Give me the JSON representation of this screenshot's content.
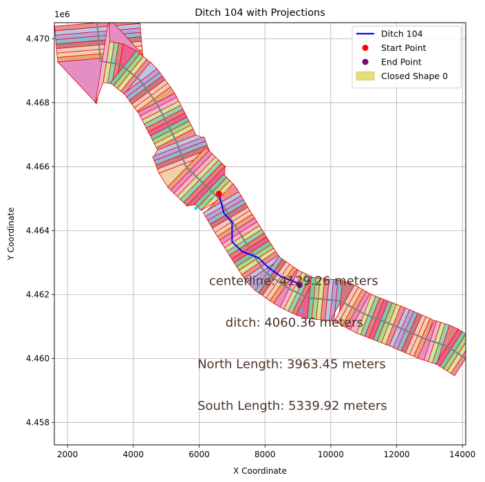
{
  "chart_data": {
    "type": "line",
    "title": "Ditch 104 with Projections",
    "xlabel": "X Coordinate",
    "ylabel": "Y Coordinate",
    "y_offset_label": "1e6",
    "xlim": [
      1600,
      14100
    ],
    "ylim": [
      4.4573,
      4.4705
    ],
    "xticks": [
      2000,
      4000,
      6000,
      8000,
      10000,
      12000,
      14000
    ],
    "xtick_labels": [
      "2000",
      "4000",
      "6000",
      "8000",
      "10000",
      "12000",
      "14000"
    ],
    "yticks": [
      4.458,
      4.46,
      4.462,
      4.464,
      4.466,
      4.468,
      4.47
    ],
    "ytick_labels": [
      "4.458",
      "4.460",
      "4.462",
      "4.464",
      "4.466",
      "4.468",
      "4.470"
    ],
    "grid": true,
    "legend_position": "top-right",
    "colors": {
      "ditch": "#0000ff",
      "start": "#ff0000",
      "end": "#800080",
      "closed_shape": "#e3e07a",
      "shape_edge": "#e00000",
      "centerline": "#808080",
      "north_projection": "#ffa500",
      "south_projection": "#00e0e0",
      "annotation": "#4a3328"
    },
    "legend": [
      {
        "label": "Ditch 104",
        "kind": "line",
        "color": "#0000ff"
      },
      {
        "label": "Start Point",
        "kind": "point",
        "color": "#ff0000"
      },
      {
        "label": "End Point",
        "kind": "point",
        "color": "#800080"
      },
      {
        "label": "Closed Shape 0",
        "kind": "patch",
        "color": "#e3e07a"
      }
    ],
    "series": [
      {
        "name": "Ditch 104",
        "x": [
          6600,
          6750,
          7000,
          7000,
          7300,
          7800,
          8100,
          8500,
          8900,
          9050
        ],
        "y": [
          4.46515,
          4.46455,
          4.46425,
          4.46365,
          4.46335,
          4.46315,
          4.46285,
          4.46255,
          4.4624,
          4.4623
        ]
      }
    ],
    "centerline": {
      "x": [
        2900,
        3000,
        3600,
        4200,
        4700,
        5300,
        5600,
        5800,
        6600,
        7000,
        7800,
        8000,
        8700,
        9300,
        10300,
        11000,
        12000,
        12900,
        13500,
        14100
      ],
      "y": [
        4.4705,
        4.4693,
        4.4692,
        4.4687,
        4.468,
        4.4668,
        4.466,
        4.4658,
        4.465,
        4.4643,
        4.463,
        4.4627,
        4.4622,
        4.4619,
        4.4618,
        4.4614,
        4.461,
        4.4606,
        4.4604,
        4.46
      ]
    },
    "start_point": {
      "x": 6600,
      "y": 4.46515
    },
    "end_point": {
      "x": 9050,
      "y": 4.4623
    },
    "north_projection": {
      "x": [
        6600,
        6850
      ],
      "y": [
        4.46515,
        4.4652
      ]
    },
    "south_projection": {
      "x": [
        5900,
        6600
      ],
      "y": [
        4.4647,
        4.46515
      ]
    },
    "north_projection_end": {
      "x": [
        9050,
        9100
      ],
      "y": [
        4.4623,
        4.4625
      ]
    },
    "south_projection_end": {
      "x": [
        9050,
        9100
      ],
      "y": [
        4.4623,
        4.4615
      ]
    },
    "annotations": [
      {
        "text": "centerline: 4129.26 meters",
        "x": 6300,
        "y": 4.4623
      },
      {
        "text": "ditch: 4060.36 meters",
        "x": 6800,
        "y": 4.461
      },
      {
        "text": "North Length: 3963.45 meters",
        "x": 5950,
        "y": 4.4597
      },
      {
        "text": "South Length: 5339.92 meters",
        "x": 5950,
        "y": 4.4584
      }
    ]
  }
}
